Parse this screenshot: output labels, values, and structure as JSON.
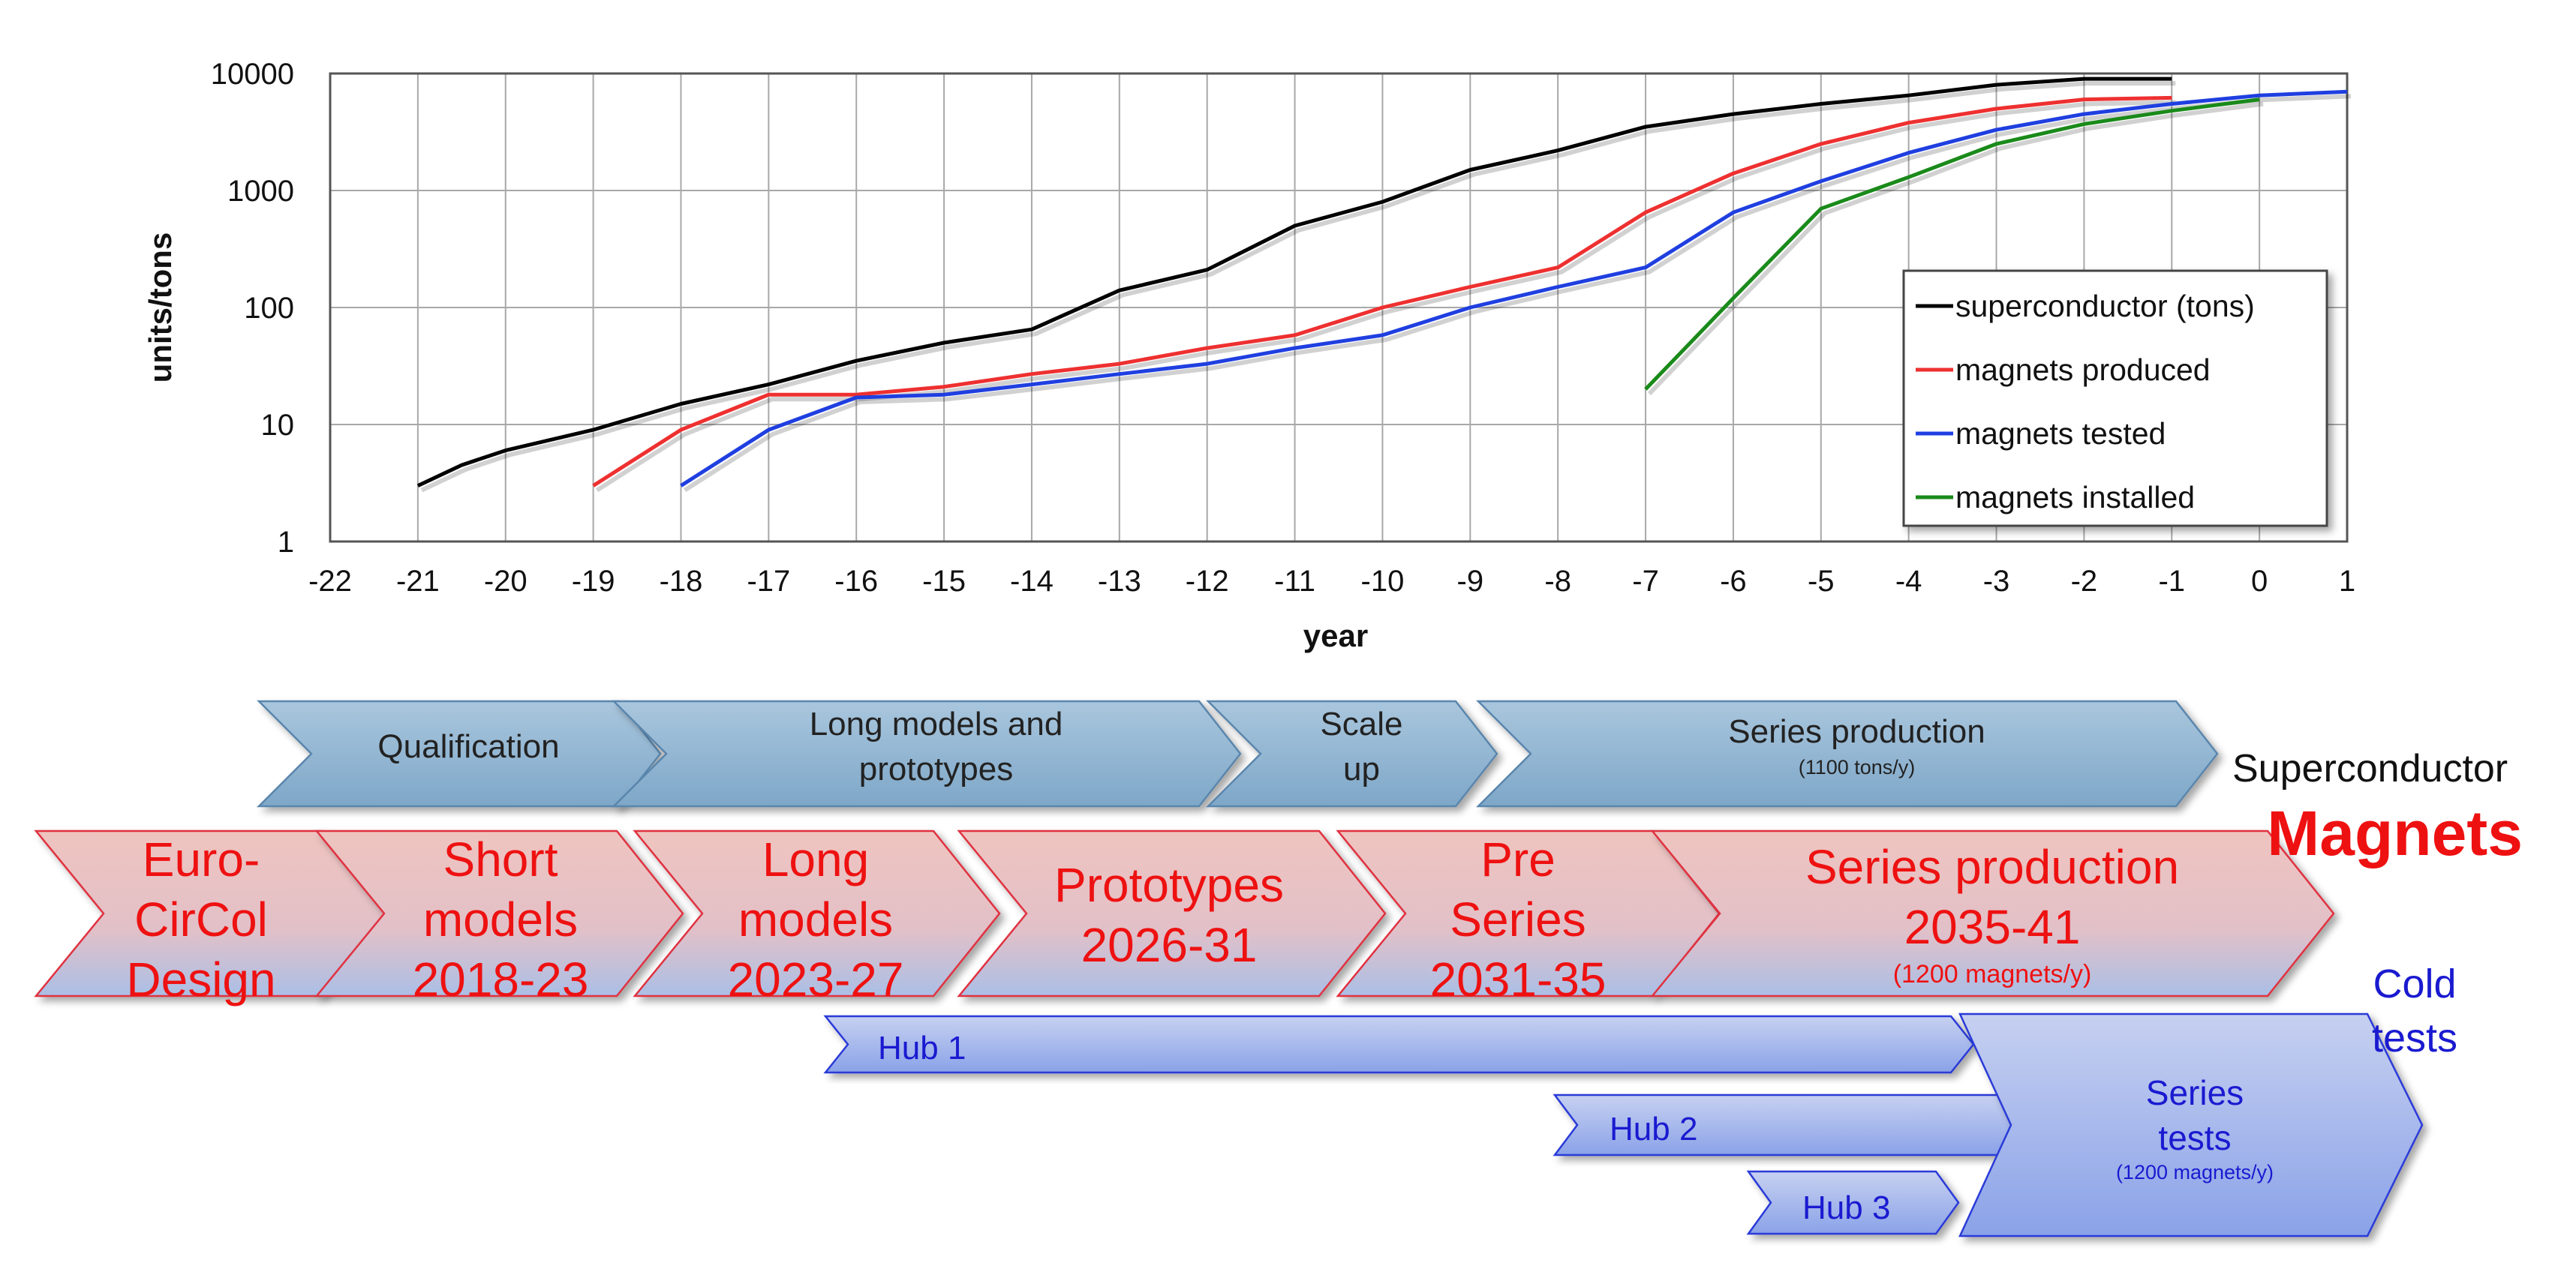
{
  "chart_data": {
    "type": "line",
    "title": "",
    "xlabel": "year",
    "ylabel": "units/tons",
    "y_scale": "log",
    "xlim": [
      -22,
      1
    ],
    "ylim": [
      1,
      10000
    ],
    "x_ticks": [
      -22,
      -21,
      -20,
      -19,
      -18,
      -17,
      -16,
      -15,
      -14,
      -13,
      -12,
      -11,
      -10,
      -9,
      -8,
      -7,
      -6,
      -5,
      -4,
      -3,
      -2,
      -1,
      0,
      1
    ],
    "y_ticks": [
      1,
      10,
      100,
      1000,
      10000
    ],
    "grid": true,
    "legend_position": "bottom-right",
    "series": [
      {
        "name": "superconductor (tons)",
        "color": "#000000",
        "x": [
          -21,
          -20.5,
          -20,
          -19,
          -18,
          -17,
          -16,
          -15,
          -14,
          -13,
          -12,
          -11,
          -10,
          -9,
          -8,
          -7,
          -6,
          -5,
          -4,
          -3,
          -2,
          -1
        ],
        "y": [
          3,
          4.5,
          6,
          9,
          15,
          22,
          35,
          50,
          65,
          140,
          210,
          500,
          800,
          1500,
          2200,
          3500,
          4500,
          5500,
          6500,
          8000,
          9000,
          9000
        ]
      },
      {
        "name": "magnets produced",
        "color": "#ee3030",
        "x": [
          -19,
          -18,
          -17,
          -16,
          -15,
          -14,
          -13,
          -12,
          -11,
          -10,
          -9,
          -8,
          -7,
          -6,
          -5,
          -4,
          -3,
          -2,
          -1
        ],
        "y": [
          3,
          9,
          18,
          18,
          21,
          27,
          33,
          45,
          58,
          100,
          150,
          220,
          650,
          1400,
          2500,
          3800,
          5000,
          6000,
          6200
        ]
      },
      {
        "name": "magnets tested",
        "color": "#1f3fe0",
        "x": [
          -18,
          -17,
          -16,
          -15,
          -14,
          -13,
          -12,
          -11,
          -10,
          -9,
          -8,
          -7,
          -6,
          -5,
          -4,
          -3,
          -2,
          -1,
          0,
          1
        ],
        "y": [
          3,
          9,
          17,
          18,
          22,
          27,
          33,
          45,
          58,
          100,
          150,
          220,
          650,
          1200,
          2100,
          3300,
          4500,
          5500,
          6500,
          7000
        ]
      },
      {
        "name": "magnets installed",
        "color": "#1a8a1a",
        "x": [
          -7,
          -6,
          -5,
          -4,
          -3,
          -2,
          -1,
          0
        ],
        "y": [
          20,
          120,
          700,
          1300,
          2500,
          3700,
          4800,
          6000
        ]
      }
    ]
  },
  "timeline": {
    "superconductor_label": "Superconductor",
    "superconductor_stages": [
      {
        "lines": [
          "Qualification"
        ],
        "sub": ""
      },
      {
        "lines": [
          "Long models and",
          "prototypes"
        ],
        "sub": ""
      },
      {
        "lines": [
          "Scale",
          "up"
        ],
        "sub": ""
      },
      {
        "lines": [
          "Series production"
        ],
        "sub": "(1100 tons/y)"
      }
    ],
    "magnets_label": "Magnets",
    "magnet_stages": [
      {
        "lines": [
          "Euro-",
          "CirCol",
          "Design"
        ],
        "sub": ""
      },
      {
        "lines": [
          "Short",
          "models",
          "2018-23"
        ],
        "sub": ""
      },
      {
        "lines": [
          "Long",
          "models",
          "2023-27"
        ],
        "sub": ""
      },
      {
        "lines": [
          "Prototypes",
          "2026-31"
        ],
        "sub": ""
      },
      {
        "lines": [
          "Pre",
          "Series",
          "2031-35"
        ],
        "sub": ""
      },
      {
        "lines": [
          "Series production",
          "2035-41"
        ],
        "sub": "(1200 magnets/y)"
      }
    ],
    "cold_tests_label": [
      "Cold",
      "tests"
    ],
    "hubs": [
      "Hub 1",
      "Hub 2",
      "Hub 3"
    ],
    "series_tests": {
      "lines": [
        "Series",
        "tests"
      ],
      "sub": "(1200 magnets/y)"
    }
  },
  "colors": {
    "superconductor_fill_top": "#a9c6dd",
    "superconductor_fill_bottom": "#7ea7c8",
    "magnet_fill_top": "#efc4bf",
    "magnet_fill_bottom": "#aabfe6",
    "magnet_text": "#ee1111",
    "hub_fill_top": "#c6d0f0",
    "hub_fill_bottom": "#8aa2e8",
    "hub_text": "#1a1ad0"
  }
}
